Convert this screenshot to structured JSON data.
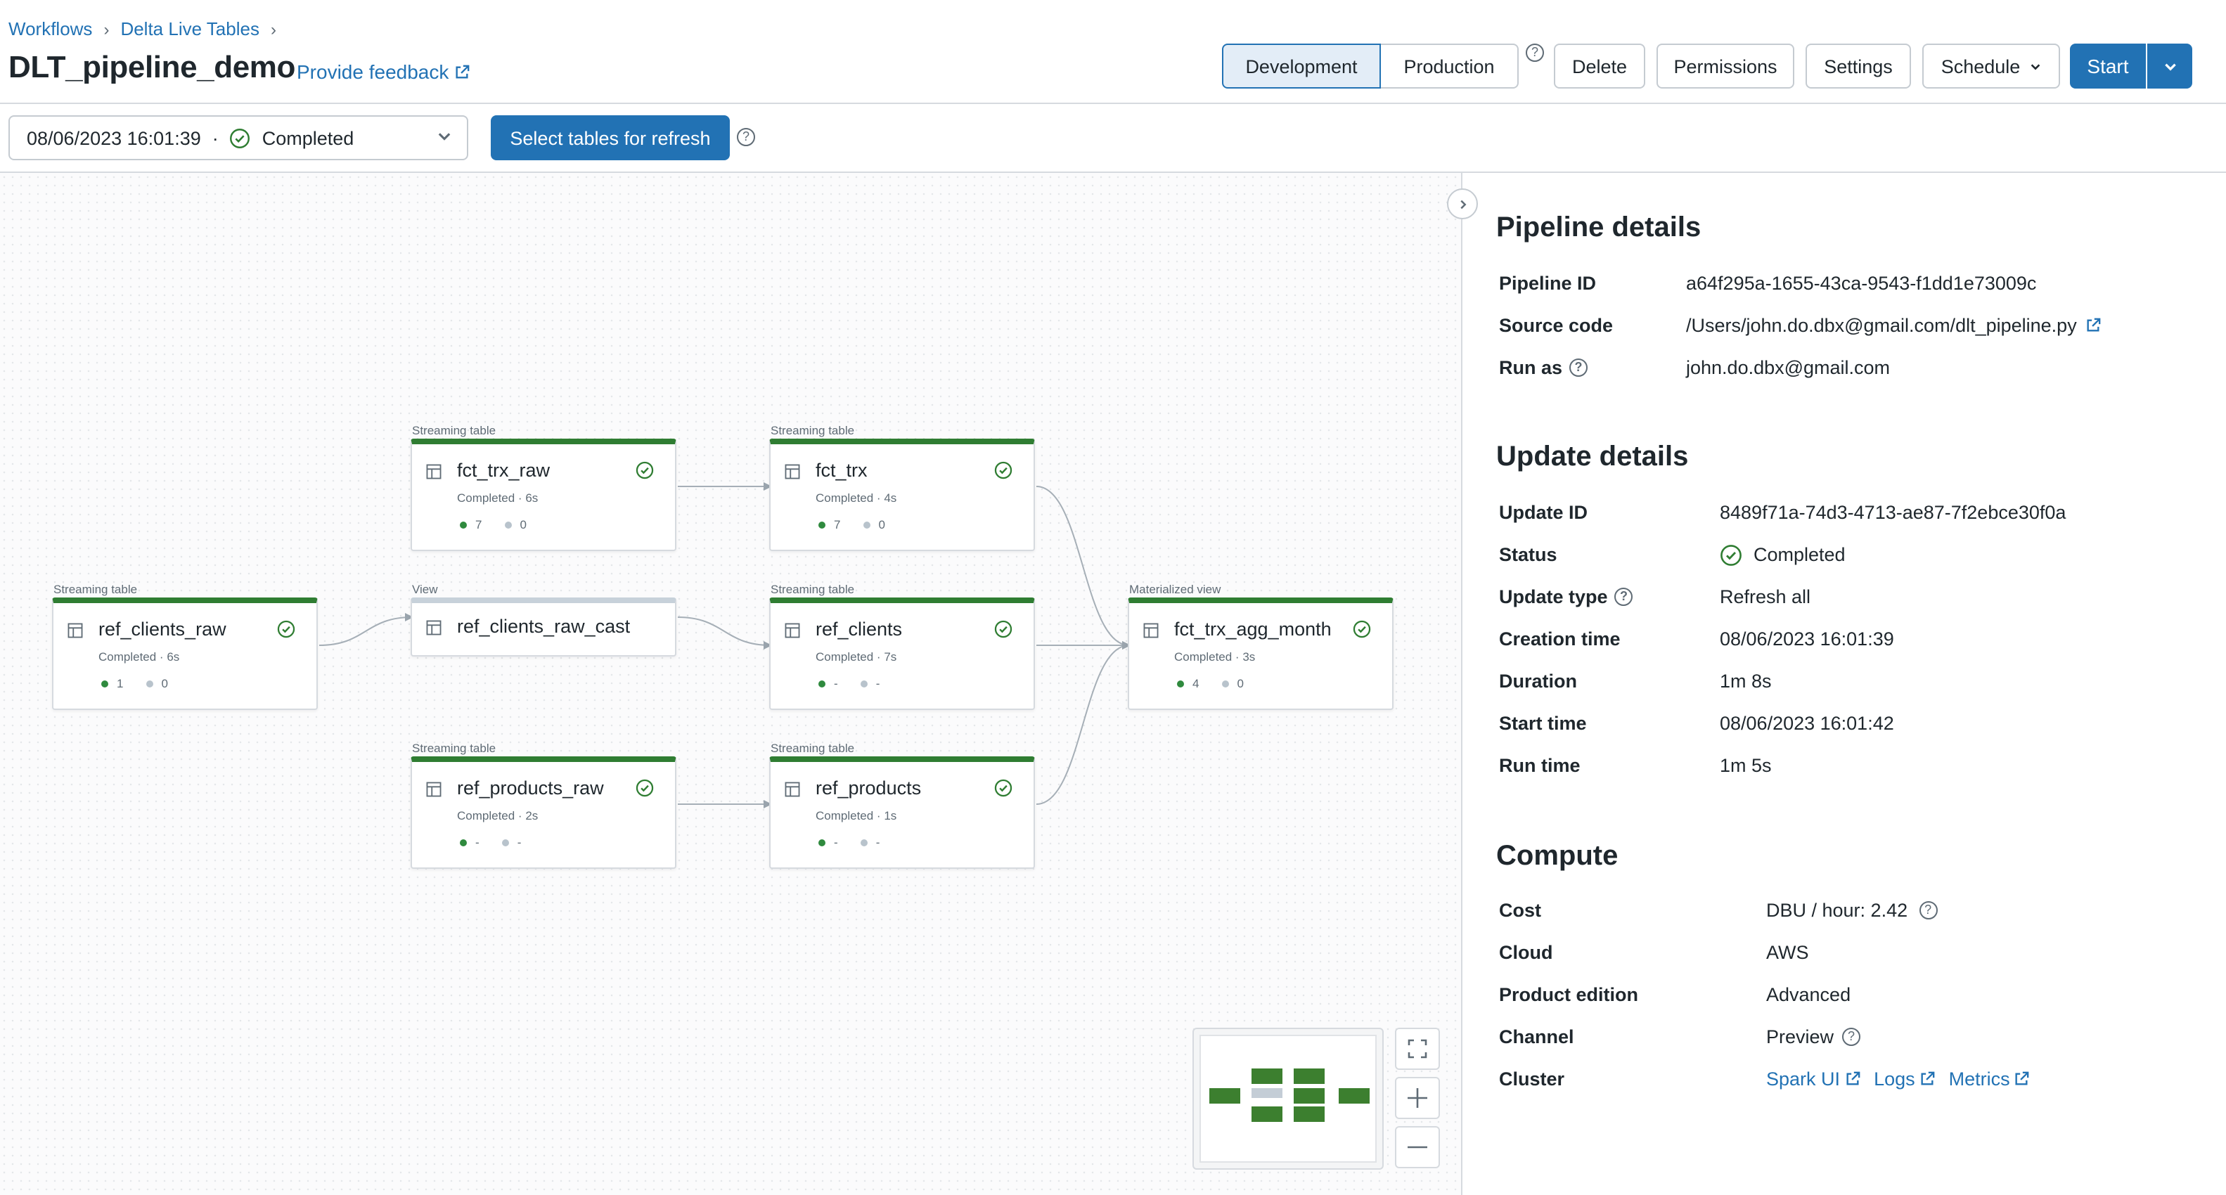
{
  "breadcrumb": {
    "items": [
      "Workflows",
      "Delta Live Tables"
    ]
  },
  "page": {
    "title": "DLT_pipeline_demo",
    "feedback_label": "Provide feedback"
  },
  "header_buttons": {
    "development": "Development",
    "production": "Production",
    "delete": "Delete",
    "permissions": "Permissions",
    "settings": "Settings",
    "schedule": "Schedule",
    "start": "Start"
  },
  "toolbar": {
    "run_timestamp": "08/06/2023 16:01:39",
    "run_separator": "·",
    "run_status": "Completed",
    "refresh_button": "Select tables for refresh"
  },
  "graph": {
    "nodes": [
      {
        "id": "ref_clients_raw",
        "type_label": "Streaming table",
        "name": "ref_clients_raw",
        "status": "Completed · 6s",
        "written": "1",
        "dropped": "0",
        "state": "completed"
      },
      {
        "id": "fct_trx_raw",
        "type_label": "Streaming table",
        "name": "fct_trx_raw",
        "status": "Completed · 6s",
        "written": "7",
        "dropped": "0",
        "state": "completed"
      },
      {
        "id": "ref_clients_raw_cast",
        "type_label": "View",
        "name": "ref_clients_raw_cast",
        "state": "view"
      },
      {
        "id": "ref_products_raw",
        "type_label": "Streaming table",
        "name": "ref_products_raw",
        "status": "Completed · 2s",
        "written": "-",
        "dropped": "-",
        "state": "completed"
      },
      {
        "id": "fct_trx",
        "type_label": "Streaming table",
        "name": "fct_trx",
        "status": "Completed · 4s",
        "written": "7",
        "dropped": "0",
        "state": "completed"
      },
      {
        "id": "ref_clients",
        "type_label": "Streaming table",
        "name": "ref_clients",
        "status": "Completed · 7s",
        "written": "-",
        "dropped": "-",
        "state": "completed"
      },
      {
        "id": "ref_products",
        "type_label": "Streaming table",
        "name": "ref_products",
        "status": "Completed · 1s",
        "written": "-",
        "dropped": "-",
        "state": "completed"
      },
      {
        "id": "fct_trx_agg_month",
        "type_label": "Materialized view",
        "name": "fct_trx_agg_month",
        "status": "Completed · 3s",
        "written": "4",
        "dropped": "0",
        "state": "completed"
      }
    ],
    "edges": [
      [
        "ref_clients_raw",
        "ref_clients_raw_cast"
      ],
      [
        "fct_trx_raw",
        "fct_trx"
      ],
      [
        "ref_clients_raw_cast",
        "ref_clients"
      ],
      [
        "ref_products_raw",
        "ref_products"
      ],
      [
        "fct_trx",
        "fct_trx_agg_month"
      ],
      [
        "ref_clients",
        "fct_trx_agg_month"
      ],
      [
        "ref_products",
        "fct_trx_agg_month"
      ]
    ]
  },
  "pipeline_details": {
    "title": "Pipeline details",
    "pipeline_id_label": "Pipeline ID",
    "pipeline_id": "a64f295a-1655-43ca-9543-f1dd1e73009c",
    "source_code_label": "Source code",
    "source_code": "/Users/john.do.dbx@gmail.com/dlt_pipeline.py",
    "run_as_label": "Run as",
    "run_as": "john.do.dbx@gmail.com"
  },
  "update_details": {
    "title": "Update details",
    "update_id_label": "Update ID",
    "update_id": "8489f71a-74d3-4713-ae87-7f2ebce30f0a",
    "status_label": "Status",
    "status": "Completed",
    "update_type_label": "Update type",
    "update_type": "Refresh all",
    "creation_time_label": "Creation time",
    "creation_time": "08/06/2023 16:01:39",
    "duration_label": "Duration",
    "duration": "1m 8s",
    "start_time_label": "Start time",
    "start_time": "08/06/2023 16:01:42",
    "run_time_label": "Run time",
    "run_time": "1m 5s"
  },
  "compute": {
    "title": "Compute",
    "cost_label": "Cost",
    "cost": "DBU / hour: 2.42",
    "cloud_label": "Cloud",
    "cloud": "AWS",
    "edition_label": "Product edition",
    "edition": "Advanced",
    "channel_label": "Channel",
    "channel": "Preview",
    "cluster_label": "Cluster",
    "cluster_links": [
      "Spark UI",
      "Logs",
      "Metrics"
    ]
  },
  "colors": {
    "accent": "#2272b4",
    "success": "#2f7d32",
    "view_bar": "#c7d1da"
  }
}
